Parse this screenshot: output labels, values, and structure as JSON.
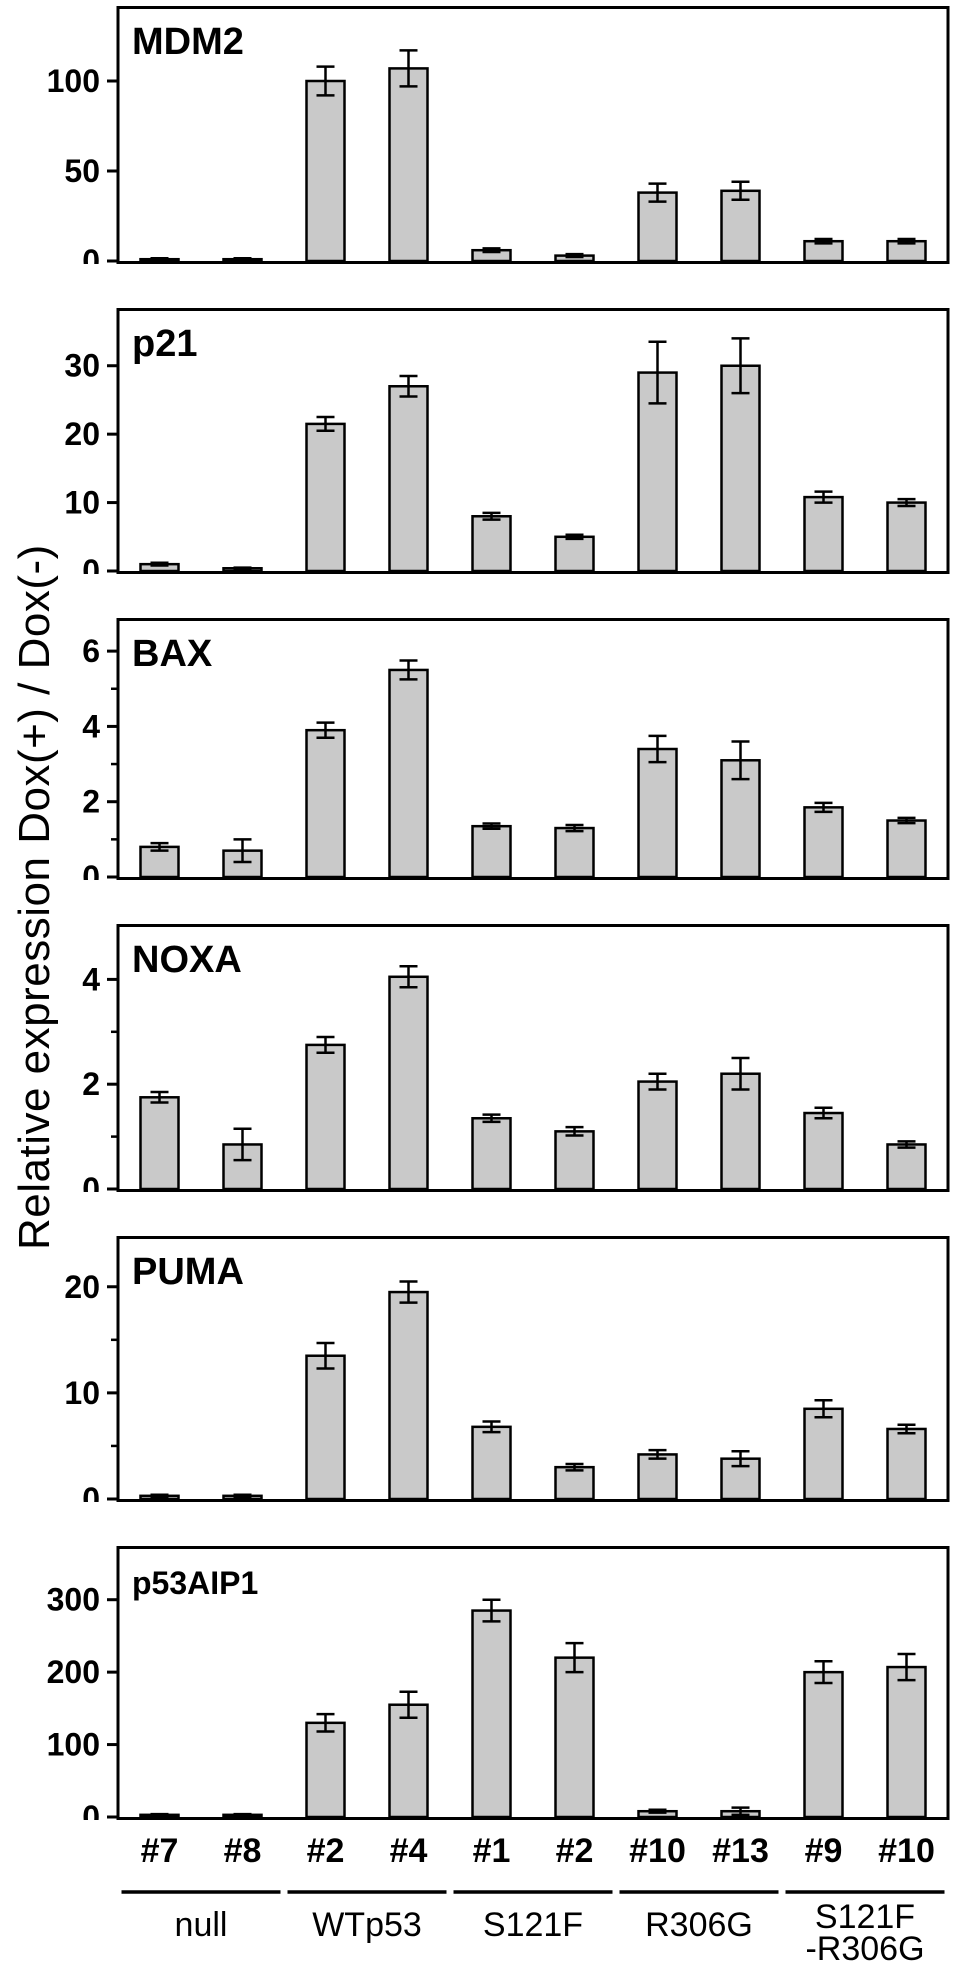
{
  "figure": {
    "y_axis_label": "Relative expression Dox(+) / Dox(-)",
    "bar_fill": "#c9c9c9",
    "bar_stroke": "#000000",
    "axis_color": "#000000",
    "background": "#ffffff"
  },
  "x_labels": [
    "#7",
    "#8",
    "#2",
    "#4",
    "#1",
    "#2",
    "#10",
    "#13",
    "#9",
    "#10"
  ],
  "groups": [
    {
      "label": "null",
      "label2": "",
      "span": [
        0,
        1
      ]
    },
    {
      "label": "WTp53",
      "label2": "",
      "span": [
        2,
        3
      ]
    },
    {
      "label": "S121F",
      "label2": "",
      "span": [
        4,
        5
      ]
    },
    {
      "label": "R306G",
      "label2": "",
      "span": [
        6,
        7
      ]
    },
    {
      "label": "S121F",
      "label2": "-R306G",
      "span": [
        8,
        9
      ]
    }
  ],
  "chart_data": [
    {
      "type": "bar",
      "title": "MDM2",
      "categories": [
        "#7",
        "#8",
        "#2",
        "#4",
        "#1",
        "#2",
        "#10",
        "#13",
        "#9",
        "#10"
      ],
      "values": [
        1,
        1,
        100,
        107,
        6,
        3,
        38,
        39,
        11,
        11
      ],
      "errors": [
        0.5,
        0.5,
        8,
        10,
        1,
        0.8,
        5,
        5,
        1.2,
        1.2
      ],
      "yticks": [
        0,
        50,
        100
      ],
      "minor_ticks": [],
      "ylim": [
        0,
        140
      ],
      "ylabel": "Relative expression Dox(+) / Dox(-)"
    },
    {
      "type": "bar",
      "title": "p21",
      "categories": [
        "#7",
        "#8",
        "#2",
        "#4",
        "#1",
        "#2",
        "#10",
        "#13",
        "#9",
        "#10"
      ],
      "values": [
        1,
        0.4,
        21.5,
        27,
        8,
        5,
        29,
        30,
        10.8,
        10
      ],
      "errors": [
        0.2,
        0.1,
        1,
        1.5,
        0.5,
        0.3,
        4.5,
        4,
        0.8,
        0.5
      ],
      "yticks": [
        0,
        10,
        20,
        30
      ],
      "minor_ticks": [],
      "ylim": [
        0,
        38
      ],
      "ylabel": "Relative expression Dox(+) / Dox(-)"
    },
    {
      "type": "bar",
      "title": "BAX",
      "categories": [
        "#7",
        "#8",
        "#2",
        "#4",
        "#1",
        "#2",
        "#10",
        "#13",
        "#9",
        "#10"
      ],
      "values": [
        0.8,
        0.7,
        3.9,
        5.5,
        1.35,
        1.3,
        3.4,
        3.1,
        1.85,
        1.5
      ],
      "errors": [
        0.1,
        0.3,
        0.2,
        0.25,
        0.07,
        0.08,
        0.35,
        0.5,
        0.12,
        0.07
      ],
      "yticks": [
        0,
        2,
        4,
        6
      ],
      "minor_ticks": [
        1,
        3,
        5
      ],
      "ylim": [
        0,
        6.8
      ],
      "ylabel": "Relative expression Dox(+) / Dox(-)"
    },
    {
      "type": "bar",
      "title": "NOXA",
      "categories": [
        "#7",
        "#8",
        "#2",
        "#4",
        "#1",
        "#2",
        "#10",
        "#13",
        "#9",
        "#10"
      ],
      "values": [
        1.75,
        0.85,
        2.75,
        4.05,
        1.35,
        1.1,
        2.05,
        2.2,
        1.45,
        0.85
      ],
      "errors": [
        0.1,
        0.3,
        0.15,
        0.2,
        0.07,
        0.08,
        0.15,
        0.3,
        0.1,
        0.06
      ],
      "yticks": [
        0,
        2,
        4
      ],
      "minor_ticks": [
        1,
        3
      ],
      "ylim": [
        0,
        5
      ],
      "ylabel": "Relative expression Dox(+) / Dox(-)"
    },
    {
      "type": "bar",
      "title": "PUMA",
      "categories": [
        "#7",
        "#8",
        "#2",
        "#4",
        "#1",
        "#2",
        "#10",
        "#13",
        "#9",
        "#10"
      ],
      "values": [
        0.3,
        0.3,
        13.5,
        19.5,
        6.8,
        3,
        4.2,
        3.8,
        8.5,
        6.6
      ],
      "errors": [
        0.1,
        0.1,
        1.2,
        1,
        0.5,
        0.3,
        0.4,
        0.7,
        0.8,
        0.4
      ],
      "yticks": [
        0,
        10,
        20
      ],
      "minor_ticks": [
        5,
        15
      ],
      "ylim": [
        0,
        24.5
      ],
      "ylabel": "Relative expression Dox(+) / Dox(-)"
    },
    {
      "type": "bar",
      "title": "p53AIP1",
      "categories": [
        "#7",
        "#8",
        "#2",
        "#4",
        "#1",
        "#2",
        "#10",
        "#13",
        "#9",
        "#10"
      ],
      "values": [
        3,
        3,
        130,
        155,
        285,
        220,
        8,
        8,
        200,
        207
      ],
      "errors": [
        1,
        1,
        12,
        18,
        15,
        20,
        2,
        5,
        15,
        18
      ],
      "yticks": [
        0,
        100,
        200,
        300
      ],
      "minor_ticks": [],
      "ylim": [
        0,
        370
      ],
      "ylabel": "Relative expression Dox(+) / Dox(-)"
    }
  ]
}
